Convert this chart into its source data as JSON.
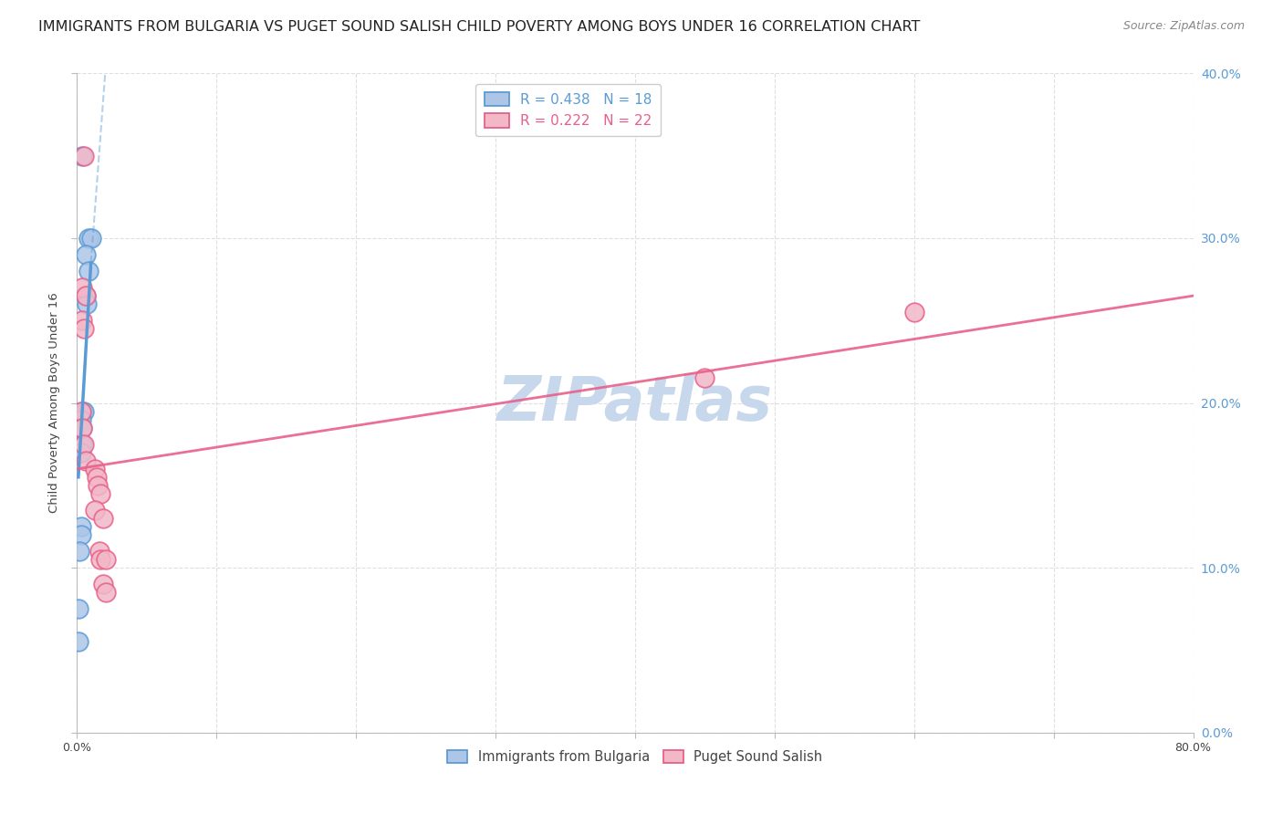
{
  "title": "IMMIGRANTS FROM BULGARIA VS PUGET SOUND SALISH CHILD POVERTY AMONG BOYS UNDER 16 CORRELATION CHART",
  "source": "Source: ZipAtlas.com",
  "ylabel": "Child Poverty Among Boys Under 16",
  "xlim": [
    0.0,
    0.8
  ],
  "ylim": [
    0.0,
    0.4
  ],
  "x_ticks": [
    0.0,
    0.1,
    0.2,
    0.3,
    0.4,
    0.5,
    0.6,
    0.7,
    0.8
  ],
  "y_ticks": [
    0.0,
    0.1,
    0.2,
    0.3,
    0.4
  ],
  "watermark": "ZIPatlas",
  "legend_top": [
    {
      "label": "R = 0.438   N = 18"
    },
    {
      "label": "R = 0.222   N = 22"
    }
  ],
  "bulgaria_points": [
    [
      0.004,
      0.35
    ],
    [
      0.008,
      0.3
    ],
    [
      0.01,
      0.3
    ],
    [
      0.006,
      0.29
    ],
    [
      0.008,
      0.28
    ],
    [
      0.006,
      0.265
    ],
    [
      0.007,
      0.26
    ],
    [
      0.004,
      0.195
    ],
    [
      0.005,
      0.195
    ],
    [
      0.003,
      0.19
    ],
    [
      0.004,
      0.185
    ],
    [
      0.004,
      0.175
    ],
    [
      0.003,
      0.17
    ],
    [
      0.003,
      0.125
    ],
    [
      0.003,
      0.12
    ],
    [
      0.002,
      0.11
    ],
    [
      0.001,
      0.075
    ],
    [
      0.001,
      0.055
    ]
  ],
  "salish_points": [
    [
      0.005,
      0.35
    ],
    [
      0.004,
      0.27
    ],
    [
      0.006,
      0.265
    ],
    [
      0.004,
      0.25
    ],
    [
      0.005,
      0.245
    ],
    [
      0.003,
      0.195
    ],
    [
      0.004,
      0.185
    ],
    [
      0.005,
      0.175
    ],
    [
      0.006,
      0.165
    ],
    [
      0.013,
      0.16
    ],
    [
      0.014,
      0.155
    ],
    [
      0.015,
      0.15
    ],
    [
      0.017,
      0.145
    ],
    [
      0.013,
      0.135
    ],
    [
      0.019,
      0.13
    ],
    [
      0.016,
      0.11
    ],
    [
      0.017,
      0.105
    ],
    [
      0.021,
      0.105
    ],
    [
      0.019,
      0.09
    ],
    [
      0.021,
      0.085
    ],
    [
      0.45,
      0.215
    ],
    [
      0.6,
      0.255
    ]
  ],
  "bulgaria_line_solid": [
    [
      0.001,
      0.155
    ],
    [
      0.01,
      0.285
    ]
  ],
  "bulgaria_line_dashed": [
    [
      0.01,
      0.285
    ],
    [
      0.022,
      0.42
    ]
  ],
  "salish_line": [
    [
      0.0,
      0.16
    ],
    [
      0.8,
      0.265
    ]
  ],
  "blue_color": "#5b9bd5",
  "pink_color": "#e8608a",
  "blue_fill": "#adc6e8",
  "pink_fill": "#f2b8c8",
  "grid_color": "#d8d8d8",
  "background_color": "#ffffff",
  "title_fontsize": 11.5,
  "axis_label_fontsize": 9.5,
  "tick_fontsize": 9,
  "legend_fontsize": 11,
  "watermark_fontsize": 48,
  "watermark_color": "#c8d8ec",
  "source_fontsize": 9
}
